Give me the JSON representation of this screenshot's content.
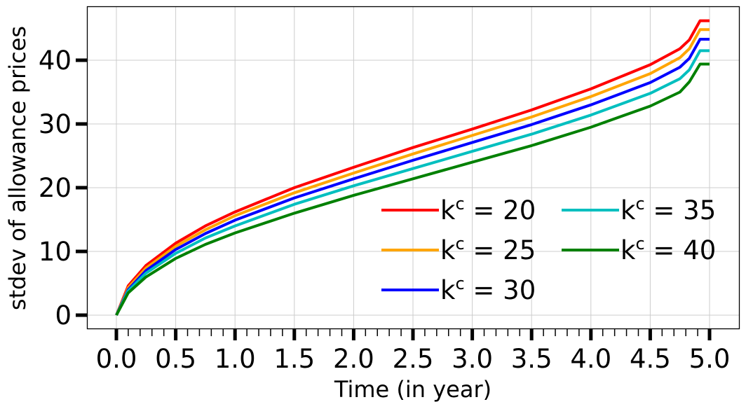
{
  "chart_data": {
    "type": "line",
    "title": "",
    "xlabel": "Time (in year)",
    "ylabel": "stdev of allowance prices",
    "xlim": [
      -0.25,
      5.25
    ],
    "ylim": [
      -2.3,
      48.5
    ],
    "xticks": [
      "0.0",
      "0.5",
      "1.0",
      "1.5",
      "2.0",
      "2.5",
      "3.0",
      "3.5",
      "4.0",
      "4.5",
      "5.0"
    ],
    "yticks": [
      "0",
      "10",
      "20",
      "30",
      "40"
    ],
    "grid": true,
    "legend_position": "lower right",
    "legend_columns": 2,
    "x": [
      0.0,
      0.1,
      0.25,
      0.5,
      0.75,
      1.0,
      1.5,
      2.0,
      2.5,
      3.0,
      3.5,
      4.0,
      4.5,
      4.75,
      4.83,
      4.92,
      5.0
    ],
    "series": [
      {
        "name": "k^c = 20",
        "color": "#ff0000",
        "values": [
          0,
          4.6,
          7.8,
          11.3,
          14.0,
          16.2,
          20.0,
          23.2,
          26.3,
          29.2,
          32.2,
          35.5,
          39.3,
          41.8,
          43.2,
          46.2,
          46.2
        ]
      },
      {
        "name": "k^c = 25",
        "color": "#ffa500",
        "values": [
          0,
          4.3,
          7.4,
          10.8,
          13.4,
          15.6,
          19.2,
          22.3,
          25.3,
          28.2,
          31.1,
          34.3,
          37.9,
          40.4,
          41.8,
          44.8,
          44.8
        ]
      },
      {
        "name": "k^c = 30",
        "color": "#0000ff",
        "values": [
          0,
          4.0,
          7.0,
          10.3,
          12.8,
          14.9,
          18.4,
          21.4,
          24.3,
          27.1,
          29.9,
          33.0,
          36.5,
          38.9,
          40.3,
          43.3,
          43.3
        ]
      },
      {
        "name": "k^c = 35",
        "color": "#00bfbf",
        "values": [
          0,
          3.8,
          6.6,
          9.7,
          12.1,
          14.0,
          17.4,
          20.3,
          23.0,
          25.7,
          28.4,
          31.4,
          34.8,
          37.1,
          38.5,
          41.5,
          41.5
        ]
      },
      {
        "name": "k^c = 40",
        "color": "#008000",
        "values": [
          0,
          3.5,
          6.0,
          8.9,
          11.1,
          12.9,
          16.0,
          18.8,
          21.4,
          24.0,
          26.6,
          29.5,
          32.8,
          35.0,
          36.6,
          39.4,
          39.4
        ]
      }
    ]
  },
  "legend": [
    {
      "base": "k",
      "sup": "c",
      "rest": " = 20",
      "color": "#ff0000"
    },
    {
      "base": "k",
      "sup": "c",
      "rest": " = 25",
      "color": "#ffa500"
    },
    {
      "base": "k",
      "sup": "c",
      "rest": " = 30",
      "color": "#0000ff"
    },
    {
      "base": "k",
      "sup": "c",
      "rest": " = 35",
      "color": "#00bfbf"
    },
    {
      "base": "k",
      "sup": "c",
      "rest": " = 40",
      "color": "#008000"
    }
  ]
}
